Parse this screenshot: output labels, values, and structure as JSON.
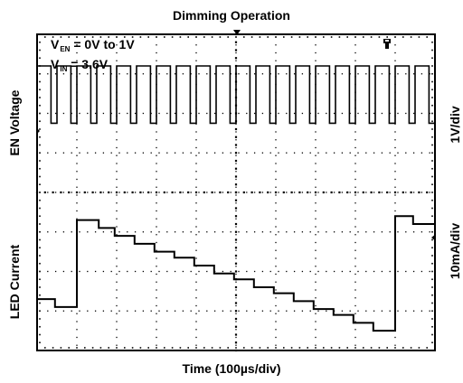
{
  "chart_data": {
    "type": "line",
    "title": "Dimming Operation",
    "xlabel": "Time (100µs/div)",
    "left_labels": {
      "top": "EN Voltage",
      "bottom": "LED Current"
    },
    "right_labels": {
      "top": "1V/div",
      "bottom": "10mA/div"
    },
    "annotations": [
      {
        "main": "V",
        "sub": "EN",
        "rest": " = 0V to 1V"
      },
      {
        "main": "V",
        "sub": "IN",
        "rest": " = 3.6V"
      }
    ],
    "grid": {
      "x_divisions": 10,
      "y_divisions": 8,
      "style": "dotted"
    },
    "xlim_div": [
      0,
      10
    ],
    "series": [
      {
        "signal": "EN Voltage",
        "kind": "square_wave",
        "high_div": 7.2,
        "low_div": 5.75,
        "start_div": 0.0,
        "period_div": 0.5,
        "duty": 0.7
      },
      {
        "signal": "LED Current",
        "kind": "staircase",
        "x_div": [
          0.0,
          0.45,
          0.45,
          0.55,
          0.55,
          1.0,
          1.0,
          1.55,
          1.95,
          2.45,
          2.95,
          3.45,
          3.95,
          4.45,
          4.95,
          5.45,
          5.95,
          6.45,
          6.95,
          7.45,
          7.95,
          8.45,
          9.0,
          9.0,
          9.45,
          9.45,
          10.0
        ],
        "y_div": [
          1.3,
          1.3,
          1.1,
          1.1,
          1.1,
          1.1,
          3.3,
          3.1,
          2.9,
          2.7,
          2.5,
          2.35,
          2.15,
          1.95,
          1.8,
          1.6,
          1.45,
          1.25,
          1.05,
          0.9,
          0.7,
          0.5,
          0.5,
          3.4,
          3.4,
          3.2,
          3.1
        ]
      }
    ]
  }
}
